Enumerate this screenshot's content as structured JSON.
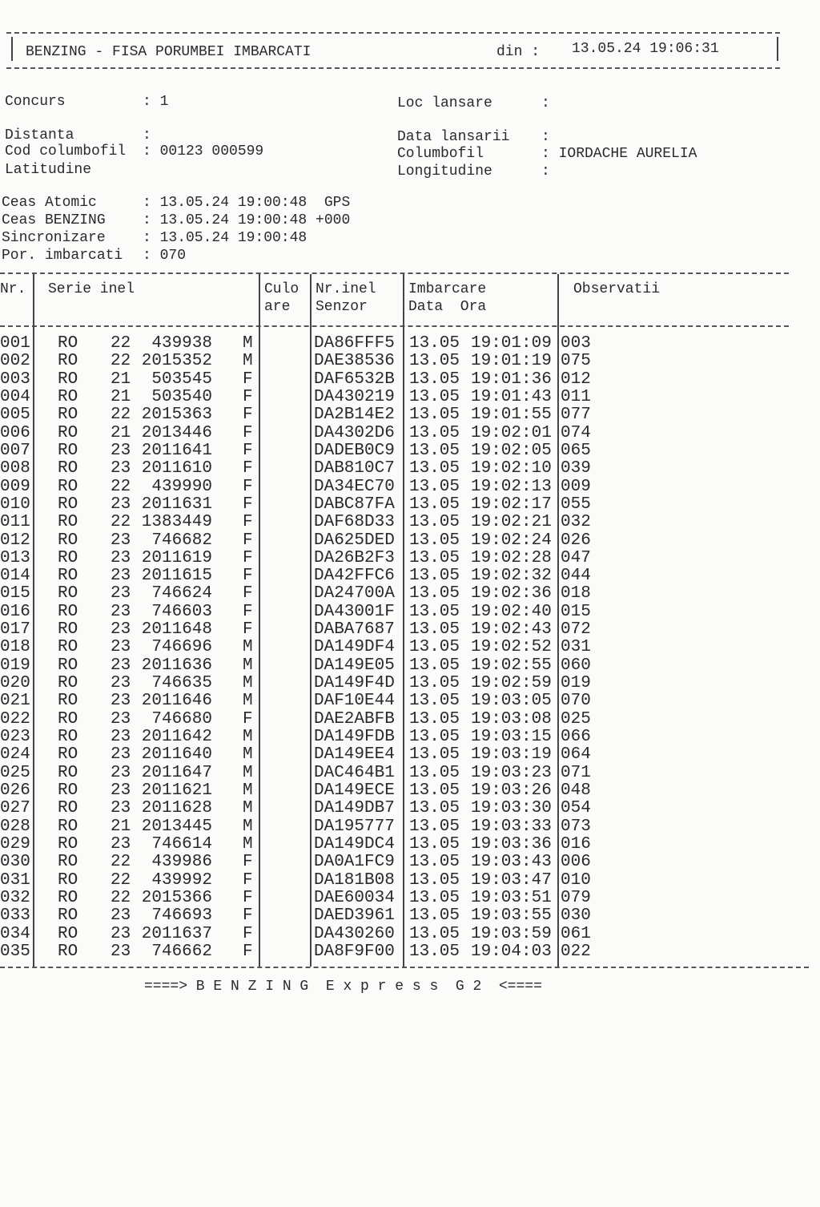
{
  "header": {
    "title": "BENZING - FISA PORUMBEI IMBARCATI",
    "date_label": "din :",
    "datetime": "13.05.24 19:06:31"
  },
  "info": {
    "left": [
      {
        "label": "Concurs",
        "value": ": 1"
      },
      {
        "label": "Distanta",
        "value": ":"
      },
      {
        "label": "Cod columbofil",
        "value": ": 00123 000599"
      },
      {
        "label": "Latitudine",
        "value": ""
      }
    ],
    "right": [
      {
        "label": "Loc lansare",
        "value": ":"
      },
      {
        "label": "Data lansarii",
        "value": ":"
      },
      {
        "label": "Columbofil",
        "value": ": IORDACHE AURELIA"
      },
      {
        "label": "Longitudine",
        "value": ":"
      }
    ],
    "clocks": [
      {
        "label": "Ceas Atomic",
        "value": ": 13.05.24 19:00:48  GPS"
      },
      {
        "label": "Ceas BENZING",
        "value": ": 13.05.24 19:00:48 +000"
      },
      {
        "label": "Sincronizare",
        "value": ": 13.05.24 19:00:48"
      },
      {
        "label": "Por. imbarcati",
        "value": ": 070"
      }
    ]
  },
  "table": {
    "headers": [
      "Nr.",
      "Serie inel",
      "Culo",
      "are",
      "Nr.inel",
      "Senzor",
      "Imbarcare",
      "Data  Ora",
      "Observatii"
    ],
    "rows": [
      [
        "001",
        "RO",
        "22",
        "439938",
        "M",
        "DA86FFF5",
        "13.05",
        "19:01:09",
        "003"
      ],
      [
        "002",
        "RO",
        "22",
        "2015352",
        "M",
        "DAE38536",
        "13.05",
        "19:01:19",
        "075"
      ],
      [
        "003",
        "RO",
        "21",
        "503545",
        "F",
        "DAF6532B",
        "13.05",
        "19:01:36",
        "012"
      ],
      [
        "004",
        "RO",
        "21",
        "503540",
        "F",
        "DA430219",
        "13.05",
        "19:01:43",
        "011"
      ],
      [
        "005",
        "RO",
        "22",
        "2015363",
        "F",
        "DA2B14E2",
        "13.05",
        "19:01:55",
        "077"
      ],
      [
        "006",
        "RO",
        "21",
        "2013446",
        "F",
        "DA4302D6",
        "13.05",
        "19:02:01",
        "074"
      ],
      [
        "007",
        "RO",
        "23",
        "2011641",
        "F",
        "DADEB0C9",
        "13.05",
        "19:02:05",
        "065"
      ],
      [
        "008",
        "RO",
        "23",
        "2011610",
        "F",
        "DAB810C7",
        "13.05",
        "19:02:10",
        "039"
      ],
      [
        "009",
        "RO",
        "22",
        "439990",
        "F",
        "DA34EC70",
        "13.05",
        "19:02:13",
        "009"
      ],
      [
        "010",
        "RO",
        "23",
        "2011631",
        "F",
        "DABC87FA",
        "13.05",
        "19:02:17",
        "055"
      ],
      [
        "011",
        "RO",
        "22",
        "1383449",
        "F",
        "DAF68D33",
        "13.05",
        "19:02:21",
        "032"
      ],
      [
        "012",
        "RO",
        "23",
        "746682",
        "F",
        "DA625DED",
        "13.05",
        "19:02:24",
        "026"
      ],
      [
        "013",
        "RO",
        "23",
        "2011619",
        "F",
        "DA26B2F3",
        "13.05",
        "19:02:28",
        "047"
      ],
      [
        "014",
        "RO",
        "23",
        "2011615",
        "F",
        "DA42FFC6",
        "13.05",
        "19:02:32",
        "044"
      ],
      [
        "015",
        "RO",
        "23",
        "746624",
        "F",
        "DA24700A",
        "13.05",
        "19:02:36",
        "018"
      ],
      [
        "016",
        "RO",
        "23",
        "746603",
        "F",
        "DA43001F",
        "13.05",
        "19:02:40",
        "015"
      ],
      [
        "017",
        "RO",
        "23",
        "2011648",
        "F",
        "DABA7687",
        "13.05",
        "19:02:43",
        "072"
      ],
      [
        "018",
        "RO",
        "23",
        "746696",
        "M",
        "DA149DF4",
        "13.05",
        "19:02:52",
        "031"
      ],
      [
        "019",
        "RO",
        "23",
        "2011636",
        "M",
        "DA149E05",
        "13.05",
        "19:02:55",
        "060"
      ],
      [
        "020",
        "RO",
        "23",
        "746635",
        "M",
        "DA149F4D",
        "13.05",
        "19:02:59",
        "019"
      ],
      [
        "021",
        "RO",
        "23",
        "2011646",
        "M",
        "DAF10E44",
        "13.05",
        "19:03:05",
        "070"
      ],
      [
        "022",
        "RO",
        "23",
        "746680",
        "F",
        "DAE2ABFB",
        "13.05",
        "19:03:08",
        "025"
      ],
      [
        "023",
        "RO",
        "23",
        "2011642",
        "M",
        "DA149FDB",
        "13.05",
        "19:03:15",
        "066"
      ],
      [
        "024",
        "RO",
        "23",
        "2011640",
        "M",
        "DA149EE4",
        "13.05",
        "19:03:19",
        "064"
      ],
      [
        "025",
        "RO",
        "23",
        "2011647",
        "M",
        "DAC464B1",
        "13.05",
        "19:03:23",
        "071"
      ],
      [
        "026",
        "RO",
        "23",
        "2011621",
        "M",
        "DA149ECE",
        "13.05",
        "19:03:26",
        "048"
      ],
      [
        "027",
        "RO",
        "23",
        "2011628",
        "M",
        "DA149DB7",
        "13.05",
        "19:03:30",
        "054"
      ],
      [
        "028",
        "RO",
        "21",
        "2013445",
        "M",
        "DA195777",
        "13.05",
        "19:03:33",
        "073"
      ],
      [
        "029",
        "RO",
        "23",
        "746614",
        "M",
        "DA149DC4",
        "13.05",
        "19:03:36",
        "016"
      ],
      [
        "030",
        "RO",
        "22",
        "439986",
        "F",
        "DA0A1FC9",
        "13.05",
        "19:03:43",
        "006"
      ],
      [
        "031",
        "RO",
        "22",
        "439992",
        "F",
        "DA181B08",
        "13.05",
        "19:03:47",
        "010"
      ],
      [
        "032",
        "RO",
        "22",
        "2015366",
        "F",
        "DAE60034",
        "13.05",
        "19:03:51",
        "079"
      ],
      [
        "033",
        "RO",
        "23",
        "746693",
        "F",
        "DAED3961",
        "13.05",
        "19:03:55",
        "030"
      ],
      [
        "034",
        "RO",
        "23",
        "2011637",
        "F",
        "DA430260",
        "13.05",
        "19:03:59",
        "061"
      ],
      [
        "035",
        "RO",
        "23",
        "746662",
        "F",
        "DA8F9F00",
        "13.05",
        "19:04:03",
        "022"
      ]
    ]
  },
  "footer": "====> B E N Z I N G  E x p r e s s  G 2  <===="
}
